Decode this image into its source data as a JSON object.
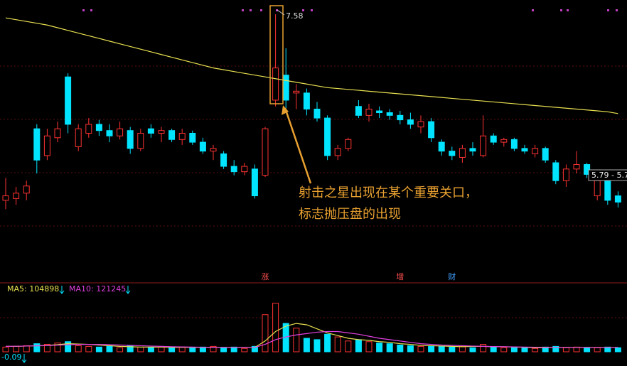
{
  "chart_data": {
    "type": "candlestick",
    "ylim": [
      4.72,
      7.74
    ],
    "up_color": "#ff3232",
    "down_color": "#00e4ff",
    "ma_color": "#e8e050",
    "high_label": "7.58",
    "price_tag": "5.79 - 5.7",
    "annotation": [
      "射击之星出现在某个重要关口，",
      "标志抛压盘的出现"
    ],
    "events": [
      {
        "label": "涨",
        "index": 25,
        "color": "#ff5050"
      },
      {
        "label": "增",
        "index": 38,
        "color": "#ff5050"
      },
      {
        "label": "财",
        "index": 43,
        "color": "#40a0ff"
      }
    ],
    "candles": [
      [
        5.5,
        5.75,
        5.4,
        5.55
      ],
      [
        5.52,
        5.65,
        5.45,
        5.58
      ],
      [
        5.58,
        5.72,
        5.5,
        5.66
      ],
      [
        6.3,
        6.35,
        5.8,
        5.95
      ],
      [
        6.0,
        6.3,
        5.95,
        6.22
      ],
      [
        6.2,
        6.38,
        6.15,
        6.3
      ],
      [
        6.88,
        6.92,
        6.25,
        6.35
      ],
      [
        6.1,
        6.35,
        6.05,
        6.3
      ],
      [
        6.25,
        6.42,
        6.2,
        6.35
      ],
      [
        6.35,
        6.4,
        6.22,
        6.28
      ],
      [
        6.28,
        6.35,
        6.15,
        6.22
      ],
      [
        6.22,
        6.38,
        6.18,
        6.3
      ],
      [
        6.28,
        6.32,
        6.02,
        6.08
      ],
      [
        6.08,
        6.3,
        6.05,
        6.25
      ],
      [
        6.3,
        6.35,
        6.2,
        6.25
      ],
      [
        6.25,
        6.32,
        6.15,
        6.28
      ],
      [
        6.28,
        6.3,
        6.15,
        6.18
      ],
      [
        6.18,
        6.3,
        6.12,
        6.25
      ],
      [
        6.25,
        6.28,
        6.12,
        6.15
      ],
      [
        6.15,
        6.2,
        6.02,
        6.05
      ],
      [
        6.05,
        6.12,
        5.95,
        6.08
      ],
      [
        6.02,
        6.05,
        5.85,
        5.88
      ],
      [
        5.88,
        5.95,
        5.78,
        5.82
      ],
      [
        5.82,
        5.92,
        5.78,
        5.88
      ],
      [
        5.85,
        5.9,
        5.52,
        5.55
      ],
      [
        5.78,
        6.32,
        5.76,
        6.3
      ],
      [
        6.62,
        7.58,
        6.55,
        6.98
      ],
      [
        6.9,
        7.2,
        6.5,
        6.62
      ],
      [
        6.7,
        6.8,
        6.52,
        6.72
      ],
      [
        6.7,
        6.75,
        6.45,
        6.52
      ],
      [
        6.52,
        6.6,
        6.38,
        6.42
      ],
      [
        6.42,
        6.45,
        5.95,
        6.0
      ],
      [
        6.0,
        6.12,
        5.95,
        6.08
      ],
      [
        6.08,
        6.2,
        6.05,
        6.18
      ],
      [
        6.55,
        6.62,
        6.42,
        6.45
      ],
      [
        6.45,
        6.58,
        6.38,
        6.52
      ],
      [
        6.5,
        6.55,
        6.42,
        6.48
      ],
      [
        6.48,
        6.52,
        6.4,
        6.45
      ],
      [
        6.45,
        6.5,
        6.35,
        6.4
      ],
      [
        6.4,
        6.48,
        6.3,
        6.35
      ],
      [
        6.32,
        6.45,
        6.25,
        6.38
      ],
      [
        6.38,
        6.42,
        6.15,
        6.2
      ],
      [
        6.15,
        6.18,
        6.0,
        6.05
      ],
      [
        6.05,
        6.1,
        5.95,
        6.0
      ],
      [
        5.98,
        6.12,
        5.92,
        6.08
      ],
      [
        6.08,
        6.15,
        6.0,
        6.05
      ],
      [
        6.0,
        6.45,
        5.98,
        6.22
      ],
      [
        6.22,
        6.25,
        6.12,
        6.15
      ],
      [
        6.15,
        6.2,
        6.1,
        6.18
      ],
      [
        6.18,
        6.2,
        6.05,
        6.08
      ],
      [
        6.08,
        6.12,
        6.02,
        6.05
      ],
      [
        6.02,
        6.12,
        5.98,
        6.08
      ],
      [
        6.08,
        6.1,
        5.92,
        5.95
      ],
      [
        5.92,
        5.95,
        5.68,
        5.72
      ],
      [
        5.72,
        5.9,
        5.65,
        5.85
      ],
      [
        5.85,
        6.05,
        5.8,
        5.9
      ],
      [
        5.9,
        5.92,
        5.75,
        5.79
      ],
      [
        5.55,
        5.75,
        5.5,
        5.72
      ],
      [
        5.75,
        5.78,
        5.45,
        5.5
      ],
      [
        5.55,
        5.6,
        5.42,
        5.48
      ]
    ],
    "ma": [
      7.54,
      7.52,
      7.5,
      7.48,
      7.46,
      7.43,
      7.4,
      7.37,
      7.34,
      7.31,
      7.28,
      7.25,
      7.22,
      7.19,
      7.16,
      7.13,
      7.1,
      7.07,
      7.04,
      7.01,
      6.98,
      6.96,
      6.94,
      6.92,
      6.9,
      6.88,
      6.86,
      6.84,
      6.82,
      6.8,
      6.78,
      6.76,
      6.75,
      6.74,
      6.73,
      6.72,
      6.71,
      6.7,
      6.69,
      6.68,
      6.67,
      6.66,
      6.65,
      6.64,
      6.63,
      6.62,
      6.61,
      6.6,
      6.59,
      6.58,
      6.57,
      6.56,
      6.55,
      6.54,
      6.53,
      6.52,
      6.51,
      6.5,
      6.49,
      6.47
    ],
    "volume": {
      "ylim": [
        0,
        1000000
      ],
      "ma5_label": "MA5: 104898",
      "ma10_label": "MA10: 121245",
      "ma5_color": "#e8e050",
      "ma10_color": "#e040e0",
      "bottom_label": "-0.09",
      "values": [
        70000,
        80000,
        90000,
        120000,
        110000,
        130000,
        150000,
        90000,
        80000,
        70000,
        80000,
        60000,
        90000,
        70000,
        60000,
        70000,
        60000,
        70000,
        60000,
        70000,
        80000,
        60000,
        70000,
        50000,
        80000,
        550000,
        720000,
        420000,
        350000,
        200000,
        180000,
        260000,
        220000,
        160000,
        180000,
        150000,
        130000,
        120000,
        100000,
        90000,
        80000,
        90000,
        80000,
        70000,
        80000,
        60000,
        110000,
        70000,
        60000,
        70000,
        60000,
        50000,
        70000,
        80000,
        60000,
        70000,
        60000,
        60000,
        70000,
        60000
      ],
      "ma5": [
        80000,
        80000,
        85000,
        90000,
        95000,
        105000,
        120000,
        115000,
        110000,
        100000,
        90000,
        80000,
        75000,
        70000,
        70000,
        70000,
        65000,
        65000,
        65000,
        65000,
        65000,
        65000,
        65000,
        65000,
        65000,
        160000,
        300000,
        380000,
        420000,
        400000,
        340000,
        280000,
        240000,
        200000,
        180000,
        170000,
        150000,
        140000,
        120000,
        110000,
        95000,
        90000,
        85000,
        80000,
        75000,
        80000,
        80000,
        75000,
        75000,
        70000,
        65000,
        60000,
        60000,
        65000,
        65000,
        65000,
        65000,
        65000,
        65000,
        65000
      ],
      "ma10": [
        80000,
        82000,
        85000,
        88000,
        92000,
        98000,
        105000,
        108000,
        110000,
        108000,
        105000,
        100000,
        95000,
        90000,
        85000,
        80000,
        75000,
        72000,
        70000,
        68000,
        66000,
        65000,
        65000,
        65000,
        65000,
        110000,
        180000,
        220000,
        250000,
        270000,
        290000,
        300000,
        300000,
        280000,
        260000,
        230000,
        200000,
        180000,
        160000,
        140000,
        120000,
        110000,
        100000,
        95000,
        90000,
        85000,
        80000,
        78000,
        75000,
        72000,
        70000,
        68000,
        66000,
        65000,
        65000,
        65000,
        65000,
        64000,
        64000,
        64000
      ]
    }
  }
}
